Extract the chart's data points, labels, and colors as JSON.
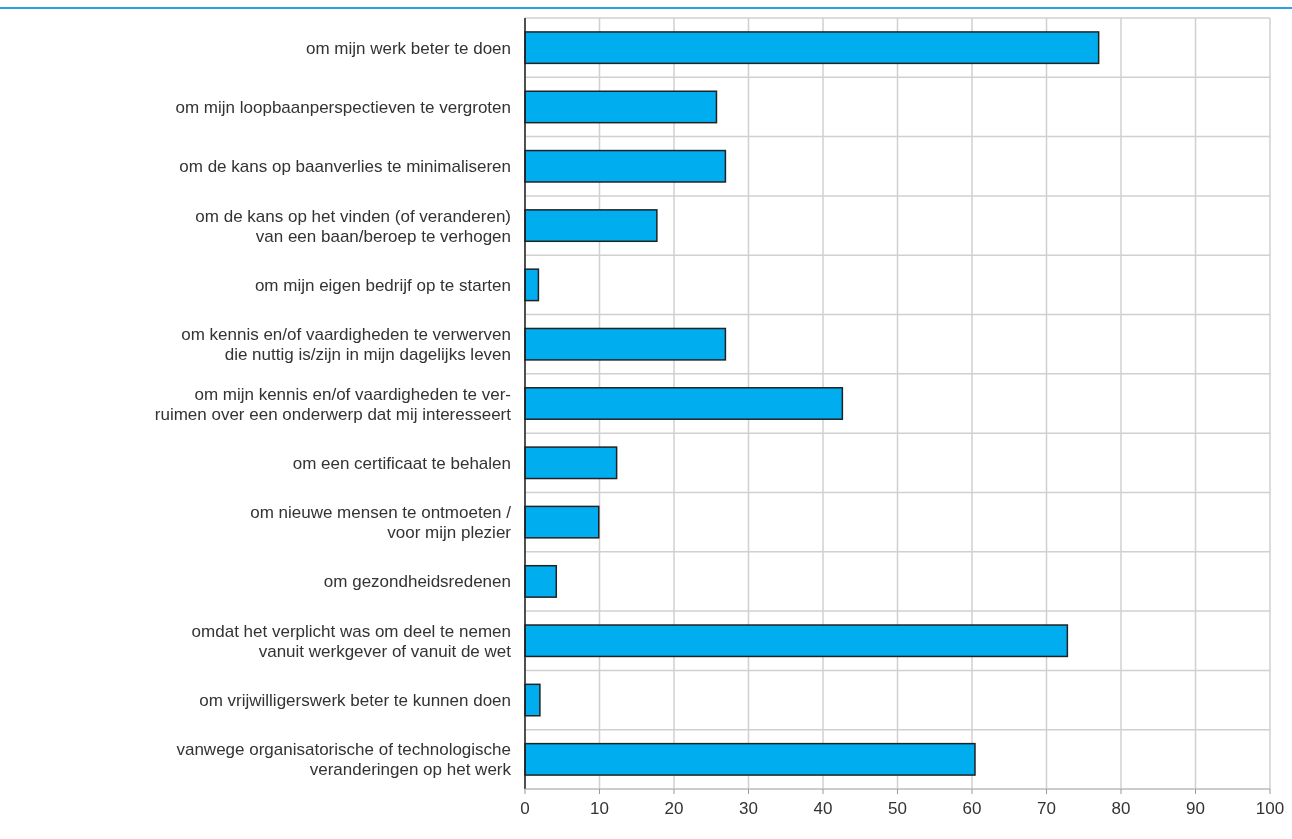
{
  "chart_data": {
    "type": "bar",
    "orientation": "horizontal",
    "categories": [
      "om mijn werk beter te doen",
      "om mijn loopbaanperspectieven te vergroten",
      "om de kans op baanverlies te minimaliseren",
      "om de kans op het vinden (of veranderen)\nvan een baan/beroep te verhogen",
      "om mijn eigen bedrijf op te starten",
      "om kennis en/of vaardigheden te verwerven\ndie nuttig is/zijn in mijn dagelijks leven",
      "om mijn kennis en/of vaardigheden te ver-\nruimen over een onderwerp dat mij interesseert",
      "om een certificaat te behalen",
      "om nieuwe mensen te ontmoeten /\nvoor mijn plezier",
      "om gezondheidsredenen",
      "omdat het verplicht was om deel te nemen\nvanuit werkgever of vanuit de wet",
      "om vrijwilligerswerk beter te kunnen doen",
      "vanwege organisatorische of technologische\nveranderingen op het werk"
    ],
    "values": [
      77.0,
      25.7,
      26.9,
      17.7,
      1.8,
      26.9,
      42.6,
      12.3,
      9.9,
      4.2,
      72.8,
      2.0,
      60.4
    ],
    "color": "#00adef",
    "xlim": [
      0,
      100
    ],
    "xticks": [
      0,
      10,
      20,
      30,
      40,
      50,
      60,
      70,
      80,
      90,
      100
    ],
    "grid": true
  }
}
